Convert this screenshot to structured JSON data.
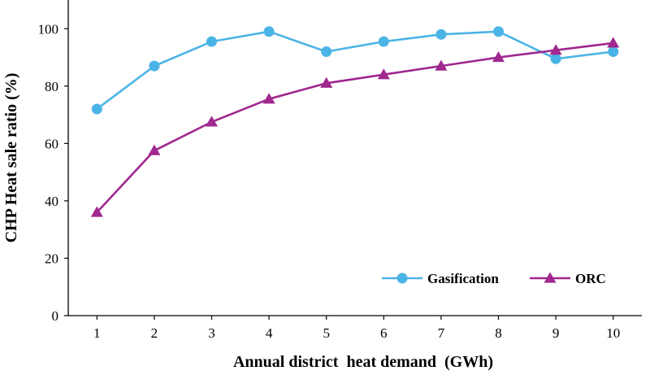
{
  "chart_data": {
    "type": "line",
    "title": "",
    "xlabel": "Annual district  heat demand  (GWh)",
    "ylabel": "CHP Heat sale ratio (%)",
    "x": [
      1,
      2,
      3,
      4,
      5,
      6,
      7,
      8,
      9,
      10
    ],
    "xlim": [
      0.5,
      10.5
    ],
    "ylim": [
      0,
      110
    ],
    "y_ticks": [
      0,
      20,
      40,
      60,
      80,
      100
    ],
    "grid": false,
    "legend_position": "bottom-right",
    "series": [
      {
        "name": "Gasification",
        "color": "#4BB4E6",
        "marker": "circle",
        "values": [
          72,
          87,
          95.5,
          99,
          92,
          95.5,
          98,
          99,
          89.5,
          92
        ]
      },
      {
        "name": "ORC",
        "color": "#A0288F",
        "marker": "triangle",
        "values": [
          36,
          57.5,
          67.5,
          75.5,
          81,
          84,
          87,
          90,
          92.5,
          95
        ]
      }
    ]
  }
}
